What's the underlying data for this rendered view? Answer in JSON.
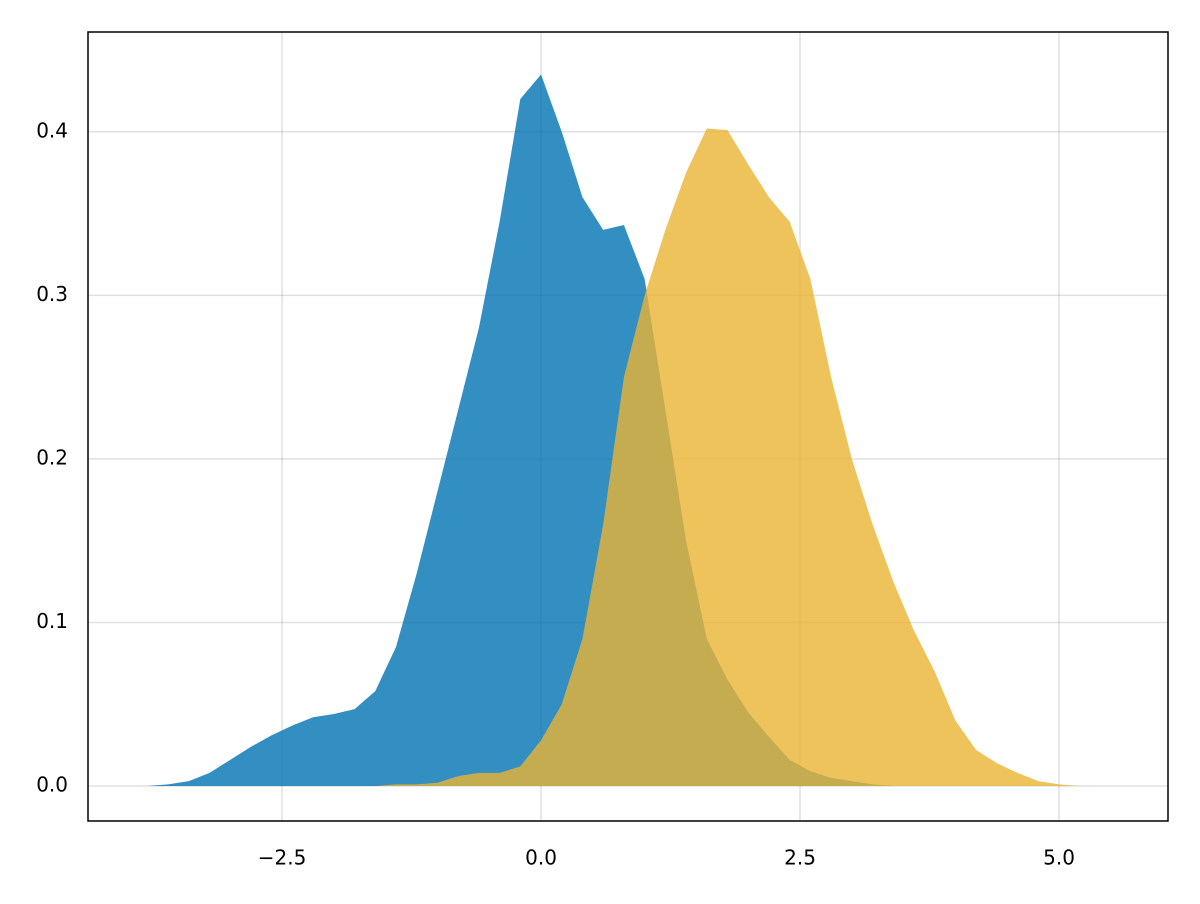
{
  "chart_data": {
    "type": "density",
    "x": [
      -3.8,
      -3.6,
      -3.4,
      -3.2,
      -3.0,
      -2.8,
      -2.6,
      -2.4,
      -2.2,
      -2.0,
      -1.8,
      -1.6,
      -1.4,
      -1.2,
      -1.0,
      -0.8,
      -0.6,
      -0.4,
      -0.2,
      0.0,
      0.2,
      0.4,
      0.6,
      0.8,
      1.0,
      1.2,
      1.4,
      1.6,
      1.8,
      2.0,
      2.2,
      2.4,
      2.6,
      2.8,
      3.0,
      3.2,
      3.4,
      3.6,
      3.8,
      4.0,
      4.2,
      4.4,
      4.6,
      4.8,
      5.0,
      5.2,
      5.4
    ],
    "series": [
      {
        "color": "#0072b2",
        "values": [
          0,
          0.001,
          0.003,
          0.008,
          0.016,
          0.024,
          0.031,
          0.037,
          0.042,
          0.044,
          0.047,
          0.058,
          0.085,
          0.13,
          0.18,
          0.23,
          0.28,
          0.345,
          0.42,
          0.435,
          0.4,
          0.36,
          0.34,
          0.343,
          0.31,
          0.23,
          0.15,
          0.09,
          0.065,
          0.045,
          0.03,
          0.016,
          0.009,
          0.005,
          0.003,
          0.001,
          0,
          0,
          0,
          0,
          0,
          0,
          0,
          0,
          0,
          0,
          0
        ]
      },
      {
        "color": "#ebb433",
        "values": [
          0,
          0,
          0,
          0,
          0,
          0,
          0,
          0,
          0,
          0,
          0,
          0,
          0.001,
          0.001,
          0.002,
          0.006,
          0.008,
          0.008,
          0.012,
          0.028,
          0.05,
          0.09,
          0.16,
          0.25,
          0.3,
          0.34,
          0.375,
          0.402,
          0.401,
          0.38,
          0.36,
          0.345,
          0.31,
          0.25,
          0.2,
          0.16,
          0.125,
          0.095,
          0.07,
          0.04,
          0.022,
          0.014,
          0.008,
          0.003,
          0.001,
          0,
          0
        ]
      }
    ],
    "alpha": 0.8,
    "xlim": [
      -4.373,
      6.052
    ],
    "ylim": [
      -0.0214,
      0.461
    ],
    "xticks": [
      {
        "value": -2.5,
        "label": "−2.5"
      },
      {
        "value": 0,
        "label": "0.0"
      },
      2.5,
      {
        "value": 5,
        "label": "5.0"
      }
    ],
    "yticks": [
      {
        "value": 0,
        "label": "0.0"
      },
      0.1,
      0.2,
      0.3,
      0.4
    ],
    "grid": true
  }
}
